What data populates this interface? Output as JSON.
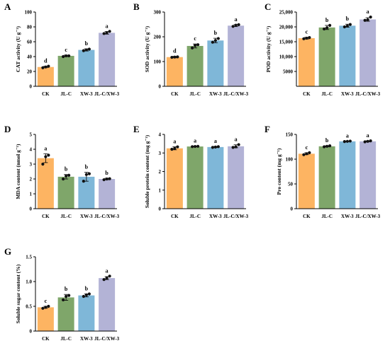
{
  "colors": {
    "CK": "#FDB462",
    "JL-C": "#7FA66A",
    "XW-3": "#7FB7D8",
    "JL-C/XW-3": "#B3B3D6"
  },
  "chart_data": [
    {
      "panel": "A",
      "type": "bar",
      "categories": [
        "CK",
        "JL-C",
        "XW-3",
        "JL-C/XW-3"
      ],
      "values": [
        26,
        41,
        49,
        72
      ],
      "errors": [
        1,
        1,
        1.5,
        1.8
      ],
      "points": [
        [
          25,
          26,
          27
        ],
        [
          40,
          41,
          41
        ],
        [
          48,
          49,
          50
        ],
        [
          71,
          72,
          74
        ]
      ],
      "sig": [
        "d",
        "c",
        "b",
        "a"
      ],
      "ylabel": "CAT activity (U g⁻¹)",
      "ylim": [
        0,
        100
      ],
      "yticks": [
        0,
        20,
        40,
        60,
        80,
        100
      ]
    },
    {
      "panel": "B",
      "type": "bar",
      "categories": [
        "CK",
        "JL-C",
        "XW-3",
        "JL-C/XW-3"
      ],
      "values": [
        118,
        163,
        185,
        245
      ],
      "errors": [
        3,
        8,
        9,
        4
      ],
      "points": [
        [
          117,
          118,
          119
        ],
        [
          155,
          165,
          168
        ],
        [
          178,
          185,
          193
        ],
        [
          242,
          247,
          249
        ]
      ],
      "sig": [
        "d",
        "c",
        "b",
        "a"
      ],
      "ylabel": "SOD activity (U g⁻¹)",
      "ylim": [
        0,
        300
      ],
      "yticks": [
        0,
        100,
        200,
        300
      ]
    },
    {
      "panel": "C",
      "type": "bar",
      "categories": [
        "CK",
        "JL-C",
        "XW-3",
        "JL-C/XW-3"
      ],
      "values": [
        16200,
        19800,
        20400,
        22500
      ],
      "errors": [
        300,
        700,
        500,
        600
      ],
      "points": [
        [
          16000,
          16200,
          16400
        ],
        [
          19300,
          19700,
          20500
        ],
        [
          20000,
          20300,
          20800
        ],
        [
          22200,
          22400,
          23300
        ]
      ],
      "sig": [
        "c",
        "b",
        "b",
        "a"
      ],
      "ylabel": "POD activity (U g⁻¹)",
      "ylim": [
        0,
        25000
      ],
      "yticks": [
        5000,
        10000,
        15000,
        20000,
        25000
      ],
      "ytick_labels": [
        "5000",
        "10,000",
        "15,000",
        "20,000",
        "25,000"
      ]
    },
    {
      "panel": "D",
      "type": "bar",
      "categories": [
        "CK",
        "JL-C",
        "XW-3",
        "JL-C/XW-3"
      ],
      "values": [
        3.4,
        2.15,
        2.15,
        2.0
      ],
      "errors": [
        0.3,
        0.15,
        0.3,
        0.05
      ],
      "points": [
        [
          3.0,
          3.5,
          3.6
        ],
        [
          2.0,
          2.2,
          2.25
        ],
        [
          1.85,
          2.3,
          2.35
        ],
        [
          1.95,
          2.0,
          2.02
        ]
      ],
      "sig": [
        "a",
        "b",
        "b",
        "b"
      ],
      "ylabel": "MDA content (nmol g⁻¹)",
      "ylim": [
        0,
        5
      ],
      "yticks": [
        0,
        1,
        2,
        3,
        4,
        5
      ]
    },
    {
      "panel": "E",
      "type": "bar",
      "categories": [
        "CK",
        "JL-C",
        "XW-3",
        "JL-C/XW-3"
      ],
      "values": [
        3.25,
        3.35,
        3.32,
        3.36
      ],
      "errors": [
        0.08,
        0.02,
        0.03,
        0.08
      ],
      "points": [
        [
          3.2,
          3.25,
          3.33
        ],
        [
          3.34,
          3.35,
          3.36
        ],
        [
          3.3,
          3.32,
          3.34
        ],
        [
          3.3,
          3.33,
          3.45
        ]
      ],
      "sig": [
        "a",
        "a",
        "a",
        "a"
      ],
      "ylabel": "Soluble protein content (mg g⁻¹)",
      "ylim": [
        0,
        4
      ],
      "yticks": [
        0,
        1,
        2,
        3,
        4
      ]
    },
    {
      "panel": "F",
      "type": "bar",
      "categories": [
        "CK",
        "JL-C",
        "XW-3",
        "JL-C/XW-3"
      ],
      "values": [
        111,
        126,
        136,
        136
      ],
      "errors": [
        2,
        1,
        0.5,
        1
      ],
      "points": [
        [
          109,
          111,
          113
        ],
        [
          125,
          126,
          127
        ],
        [
          135.5,
          136,
          136.5
        ],
        [
          135,
          136,
          137
        ]
      ],
      "sig": [
        "c",
        "b",
        "a",
        "a"
      ],
      "ylabel": "Pro content (mg g⁻¹)",
      "ylim": [
        0,
        150
      ],
      "yticks": [
        0,
        50,
        100,
        150
      ]
    },
    {
      "panel": "G",
      "type": "bar",
      "categories": [
        "CK",
        "JL-C",
        "XW-3",
        "JL-C/XW-3"
      ],
      "values": [
        0.48,
        0.68,
        0.72,
        1.07
      ],
      "errors": [
        0.02,
        0.06,
        0.03,
        0.03
      ],
      "points": [
        [
          0.46,
          0.48,
          0.5
        ],
        [
          0.63,
          0.7,
          0.72
        ],
        [
          0.7,
          0.73,
          0.75
        ],
        [
          1.04,
          1.07,
          1.11
        ]
      ],
      "sig": [
        "c",
        "b",
        "b",
        "a"
      ],
      "ylabel": "Soluble sugar content (%)",
      "ylim": [
        0,
        1.5
      ],
      "yticks": [
        0,
        0.5,
        1.0,
        1.5
      ],
      "ytick_labels": [
        "0",
        "0.5",
        "1.0",
        "1.5"
      ]
    }
  ]
}
